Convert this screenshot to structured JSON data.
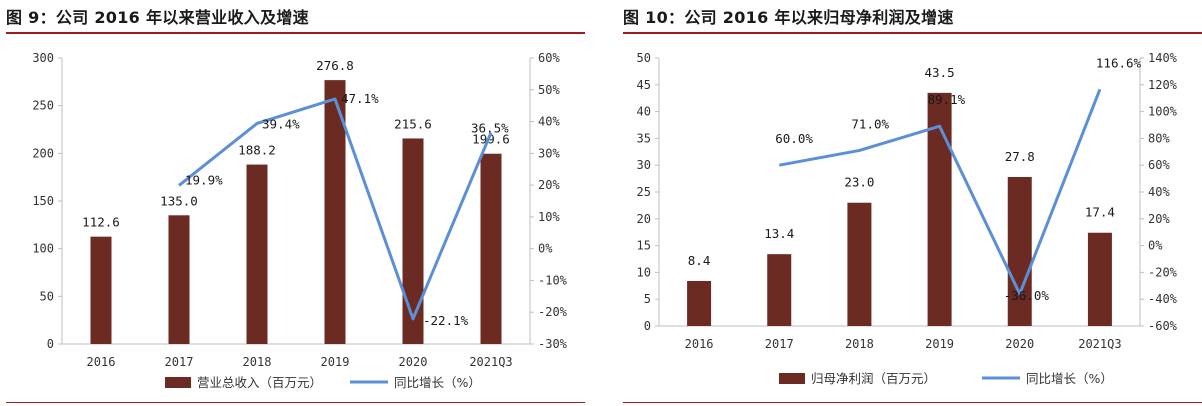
{
  "colors": {
    "bar": "#6b2b23",
    "line": "#5b8fd6",
    "rule": "#9c1c22",
    "axis": "#bfbfbf"
  },
  "figures": [
    {
      "title": "图 9：公司 2016 年以来营业收入及增速",
      "chart_data": {
        "type": "bar+line",
        "categories": [
          "2016",
          "2017",
          "2018",
          "2019",
          "2020",
          "2021Q3"
        ],
        "y_left": {
          "lim": [
            0,
            300
          ],
          "ticks": [
            "0",
            "50",
            "100",
            "150",
            "200",
            "250",
            "300"
          ]
        },
        "y_right": {
          "lim": [
            -30,
            60
          ],
          "ticks": [
            "-30%",
            "-20%",
            "-10%",
            "0%",
            "10%",
            "20%",
            "30%",
            "40%",
            "50%",
            "60%"
          ]
        },
        "series": [
          {
            "name": "营业总收入（百万元）",
            "type": "bar",
            "axis": "left",
            "values": [
              112.6,
              135.0,
              188.2,
              276.8,
              215.6,
              199.6
            ],
            "labels": [
              "112.6",
              "135.0",
              "188.2",
              "276.8",
              "215.6",
              "199.6"
            ]
          },
          {
            "name": "同比增长（%）",
            "type": "line",
            "axis": "right",
            "values": [
              null,
              19.9,
              39.4,
              47.1,
              -22.1,
              36.5
            ],
            "labels": [
              "",
              "19.9%",
              "39.4%",
              "47.1%",
              "-22.1%",
              "36.5%"
            ]
          }
        ],
        "grid": false,
        "legend": "bottom"
      }
    },
    {
      "title": "图 10：公司 2016 年以来归母净利润及增速",
      "chart_data": {
        "type": "bar+line",
        "categories": [
          "2016",
          "2017",
          "2018",
          "2019",
          "2020",
          "2021Q3"
        ],
        "y_left": {
          "lim": [
            0,
            50
          ],
          "ticks": [
            "0",
            "5",
            "10",
            "15",
            "20",
            "25",
            "30",
            "35",
            "40",
            "45",
            "50"
          ]
        },
        "y_right": {
          "lim": [
            -60,
            140
          ],
          "ticks": [
            "-60%",
            "-40%",
            "-20%",
            "0%",
            "20%",
            "40%",
            "60%",
            "80%",
            "100%",
            "120%",
            "140%"
          ]
        },
        "series": [
          {
            "name": "归母净利润（百万元）",
            "type": "bar",
            "axis": "left",
            "values": [
              8.4,
              13.4,
              23.0,
              43.5,
              27.8,
              17.4
            ],
            "labels": [
              "8.4",
              "13.4",
              "23.0",
              "43.5",
              "27.8",
              "17.4"
            ]
          },
          {
            "name": "同比增长（%）",
            "type": "line",
            "axis": "right",
            "values": [
              null,
              60.0,
              71.0,
              89.1,
              -36.0,
              116.6
            ],
            "labels": [
              "",
              "60.0%",
              "71.0%",
              "89.1%",
              "-36.0%",
              "116.6%"
            ]
          }
        ],
        "grid": false,
        "legend": "bottom"
      }
    }
  ]
}
